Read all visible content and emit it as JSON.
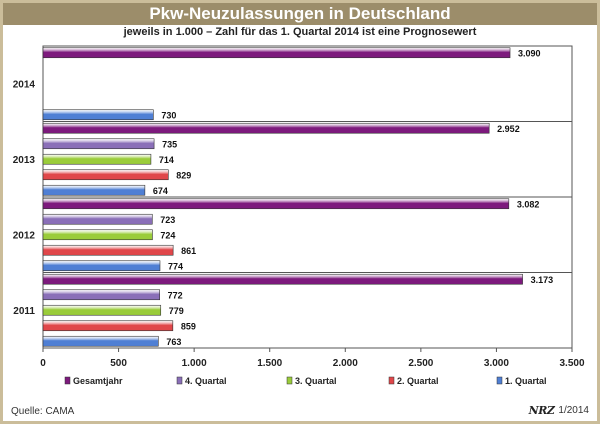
{
  "header": {
    "title": "Pkw-Neuzulassungen in Deutschland",
    "subtitle": "jeweils in 1.000 – Zahl für das 1. Quartal 2014 ist eine Prognosewert"
  },
  "footer": {
    "source": "Quelle: CAMA",
    "logo_text": "NRZ",
    "date": "1/2014"
  },
  "colors": {
    "gesamtjahr": "#7d1a7d",
    "q4": "#8a6fb8",
    "q3": "#9acc3a",
    "q2": "#e0474a",
    "q1": "#4f7fd4",
    "frame": "#cbbd9a",
    "title_bg": "#9c8d6a"
  },
  "chart_data": {
    "type": "bar",
    "orientation": "horizontal",
    "title": "Pkw-Neuzulassungen in Deutschland",
    "subtitle": "jeweils in 1.000 – Zahl für das 1. Quartal 2014 ist eine Prognosewert",
    "categories": [
      "2014",
      "2013",
      "2012",
      "2011"
    ],
    "x_ticks": [
      "0",
      "500",
      "1.000",
      "1.500",
      "2.000",
      "2.500",
      "3.000",
      "3.500"
    ],
    "xlim": [
      0,
      3500
    ],
    "series": [
      {
        "name": "Gesamtjahr",
        "key": "gesamtjahr",
        "values": [
          3090,
          2952,
          3082,
          3173
        ],
        "labels": [
          "3.090",
          "2.952",
          "3.082",
          "3.173"
        ]
      },
      {
        "name": "4. Quartal",
        "key": "q4",
        "values": [
          null,
          735,
          723,
          772
        ],
        "labels": [
          "",
          "735",
          "723",
          "772"
        ]
      },
      {
        "name": "3. Quartal",
        "key": "q3",
        "values": [
          null,
          714,
          724,
          779
        ],
        "labels": [
          "",
          "714",
          "724",
          "779"
        ]
      },
      {
        "name": "2. Quartal",
        "key": "q2",
        "values": [
          null,
          829,
          861,
          859
        ],
        "labels": [
          "",
          "829",
          "861",
          "859"
        ]
      },
      {
        "name": "1. Quartal",
        "key": "q1",
        "values": [
          730,
          674,
          774,
          763
        ],
        "labels": [
          "730",
          "674",
          "774",
          "763"
        ]
      }
    ],
    "legend": [
      "Gesamtjahr",
      "4. Quartal",
      "3. Quartal",
      "2. Quartal",
      "1. Quartal"
    ],
    "legend_position": "bottom",
    "grid": true
  }
}
